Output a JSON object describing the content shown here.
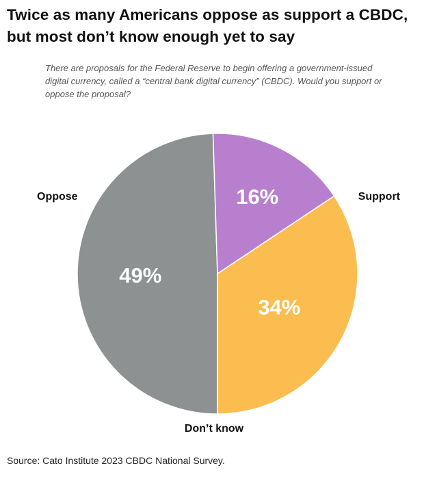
{
  "title": "Twice as many Americans oppose as support a CBDC, but most don’t know enough yet to say",
  "question": "There are proposals for the Federal Reserve to begin offering a government-issued digital currency, called a “central bank digital currency” (CBDC). Would you support or oppose the proposal?",
  "source": "Source: Cato Institute 2023 CBDC National Survey.",
  "chart_data": {
    "type": "pie",
    "start_angle_deg": 270,
    "direction": "counterclockwise",
    "slices": [
      {
        "label": "Don’t know",
        "value": 49,
        "value_label": "49%",
        "color": "#8e9192"
      },
      {
        "label": "Support",
        "value": 16,
        "value_label": "16%",
        "color": "#b87fcf"
      },
      {
        "label": "Oppose",
        "value": 34,
        "value_label": "34%",
        "color": "#fbbd4f"
      }
    ]
  }
}
